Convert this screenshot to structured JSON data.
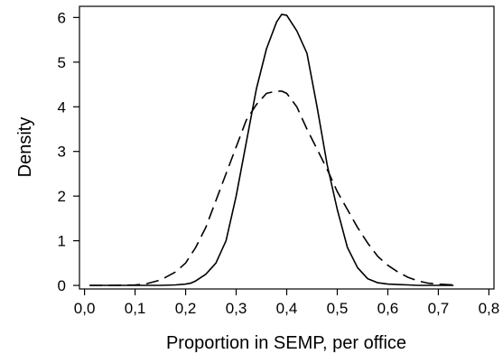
{
  "chart_data": {
    "type": "line",
    "title": "",
    "xlabel": "Proportion in SEMP, per office",
    "ylabel": "Density",
    "xlim": [
      -0.01,
      0.81
    ],
    "ylim": [
      -0.08,
      6.25
    ],
    "x_ticks": [
      0,
      0.1,
      0.2,
      0.3,
      0.4,
      0.5,
      0.6,
      0.7,
      0.8
    ],
    "x_tick_labels": [
      "0,0",
      "0,1",
      "0,2",
      "0,3",
      "0,4",
      "0,5",
      "0,6",
      "0,7",
      "0,8"
    ],
    "y_ticks": [
      0,
      1,
      2,
      3,
      4,
      5,
      6
    ],
    "y_tick_labels": [
      "0",
      "1",
      "2",
      "3",
      "4",
      "5",
      "6"
    ],
    "grid": false,
    "legend": "none",
    "series": [
      {
        "style": "solid",
        "color": "#000000",
        "x": [
          0.01,
          0.05,
          0.1,
          0.15,
          0.18,
          0.2,
          0.21,
          0.22,
          0.24,
          0.26,
          0.28,
          0.3,
          0.32,
          0.34,
          0.36,
          0.38,
          0.39,
          0.4,
          0.42,
          0.44,
          0.46,
          0.48,
          0.5,
          0.52,
          0.54,
          0.56,
          0.58,
          0.6,
          0.62,
          0.64,
          0.66,
          0.68,
          0.7,
          0.73
        ],
        "y": [
          0,
          0,
          0,
          0,
          0.01,
          0.03,
          0.05,
          0.1,
          0.25,
          0.5,
          1.0,
          2.0,
          3.2,
          4.4,
          5.3,
          5.9,
          6.07,
          6.05,
          5.7,
          5.2,
          4.0,
          2.7,
          1.7,
          0.85,
          0.4,
          0.15,
          0.06,
          0.03,
          0.02,
          0.01,
          0,
          0,
          0,
          0
        ]
      },
      {
        "style": "dashed",
        "color": "#000000",
        "x": [
          0.01,
          0.05,
          0.1,
          0.12,
          0.15,
          0.18,
          0.2,
          0.22,
          0.24,
          0.26,
          0.28,
          0.3,
          0.32,
          0.34,
          0.36,
          0.38,
          0.39,
          0.4,
          0.42,
          0.44,
          0.46,
          0.48,
          0.5,
          0.52,
          0.54,
          0.56,
          0.58,
          0.6,
          0.62,
          0.64,
          0.66,
          0.68,
          0.7,
          0.73
        ],
        "y": [
          0,
          0,
          0.01,
          0.03,
          0.12,
          0.3,
          0.5,
          0.85,
          1.3,
          1.9,
          2.5,
          3.1,
          3.7,
          4.05,
          4.3,
          4.35,
          4.35,
          4.3,
          4.0,
          3.5,
          3.05,
          2.6,
          2.1,
          1.7,
          1.3,
          0.95,
          0.65,
          0.45,
          0.3,
          0.18,
          0.1,
          0.05,
          0.03,
          0.01
        ]
      }
    ]
  }
}
